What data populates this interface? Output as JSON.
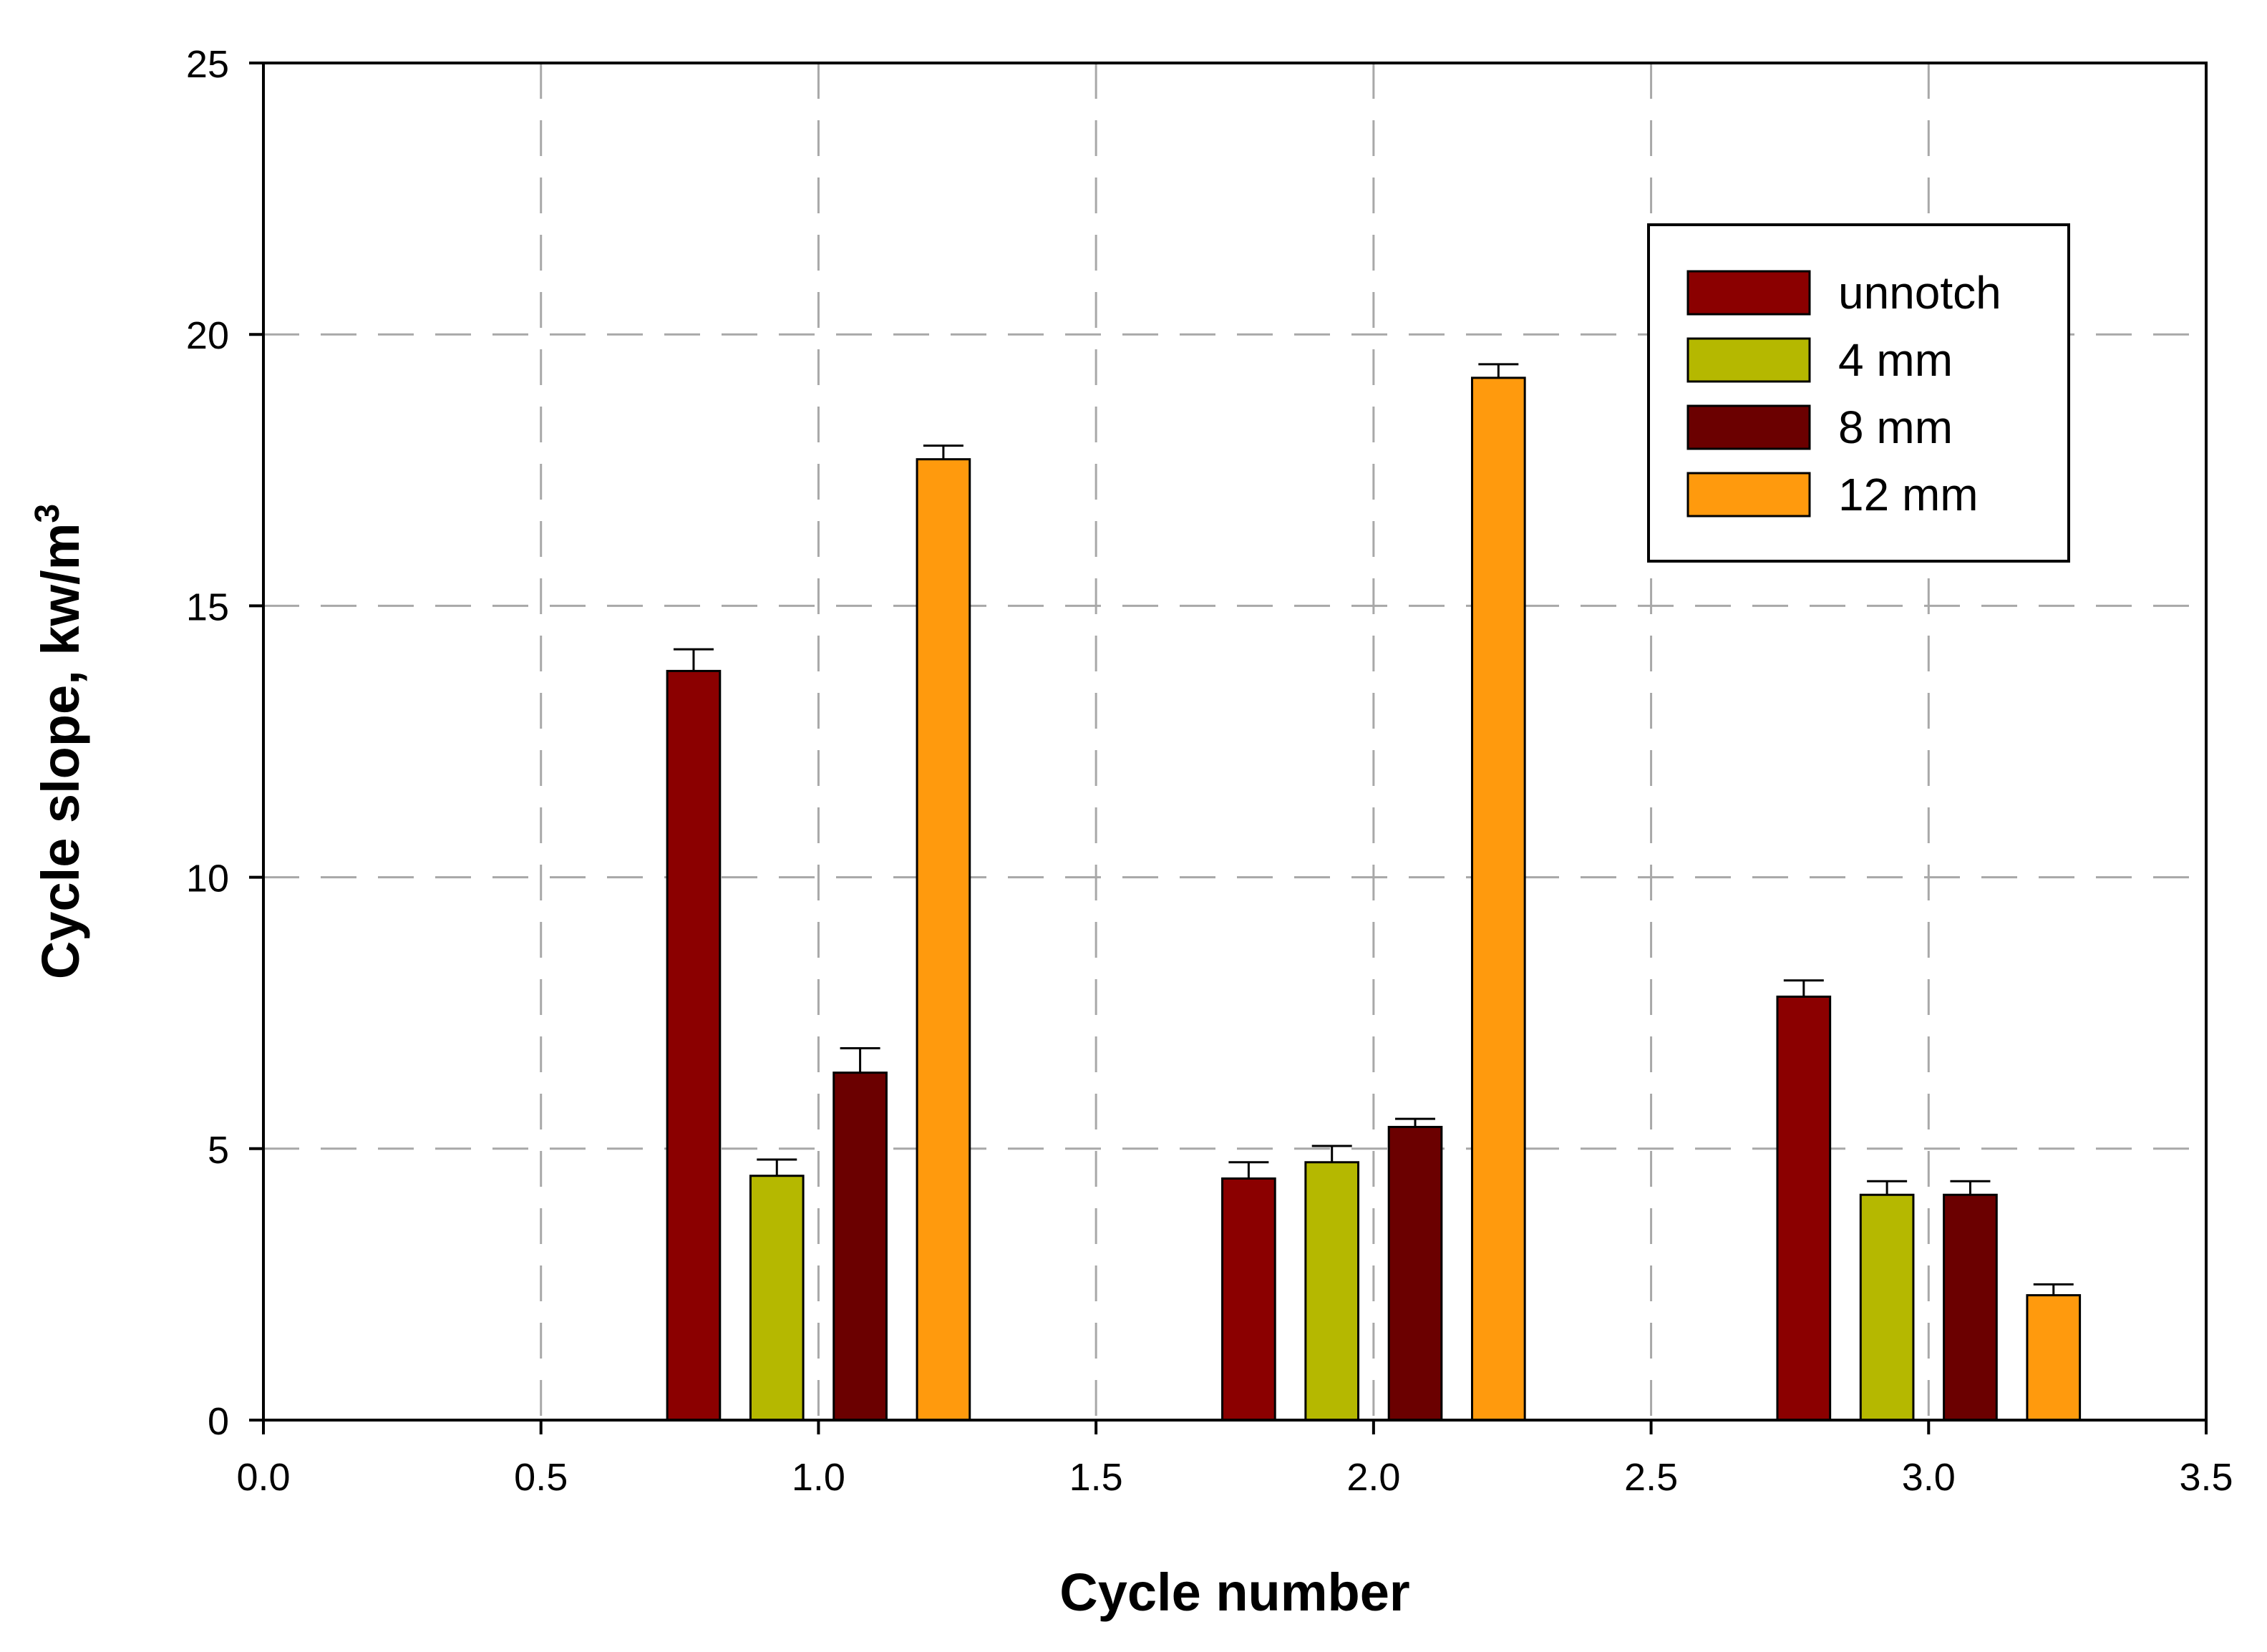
{
  "chart_data": {
    "type": "bar",
    "xlabel": "Cycle number",
    "ylabel": "Cycle slope, kw/m",
    "ylabel_sup": "3",
    "xlim": [
      0.0,
      3.5
    ],
    "ylim": [
      0,
      25
    ],
    "xticks": [
      "0.0",
      "0.5",
      "1.0",
      "1.5",
      "2.0",
      "2.5",
      "3.0",
      "3.5"
    ],
    "yticks": [
      "0",
      "5",
      "10",
      "15",
      "20",
      "25"
    ],
    "grid": true,
    "legend_position": "top-right",
    "bar_width": 0.095,
    "series": [
      {
        "name": "unnotch",
        "color": "#8b0000",
        "x": [
          0.775,
          1.775,
          2.775
        ],
        "values": [
          13.8,
          4.45,
          7.8
        ],
        "errors": [
          0.4,
          0.3,
          0.3
        ]
      },
      {
        "name": "4 mm",
        "color": "#b5b800",
        "x": [
          0.925,
          1.925,
          2.925
        ],
        "values": [
          4.5,
          4.75,
          4.15
        ],
        "errors": [
          0.3,
          0.3,
          0.25
        ]
      },
      {
        "name": "8 mm",
        "color": "#6b0000",
        "x": [
          1.075,
          2.075,
          3.075
        ],
        "values": [
          6.4,
          5.4,
          4.15
        ],
        "errors": [
          0.45,
          0.15,
          0.25
        ]
      },
      {
        "name": "12 mm",
        "color": "#ff9a0d",
        "x": [
          1.225,
          2.225,
          3.225
        ],
        "values": [
          17.7,
          19.2,
          2.3
        ],
        "errors": [
          0.25,
          0.25,
          0.2
        ]
      }
    ]
  }
}
